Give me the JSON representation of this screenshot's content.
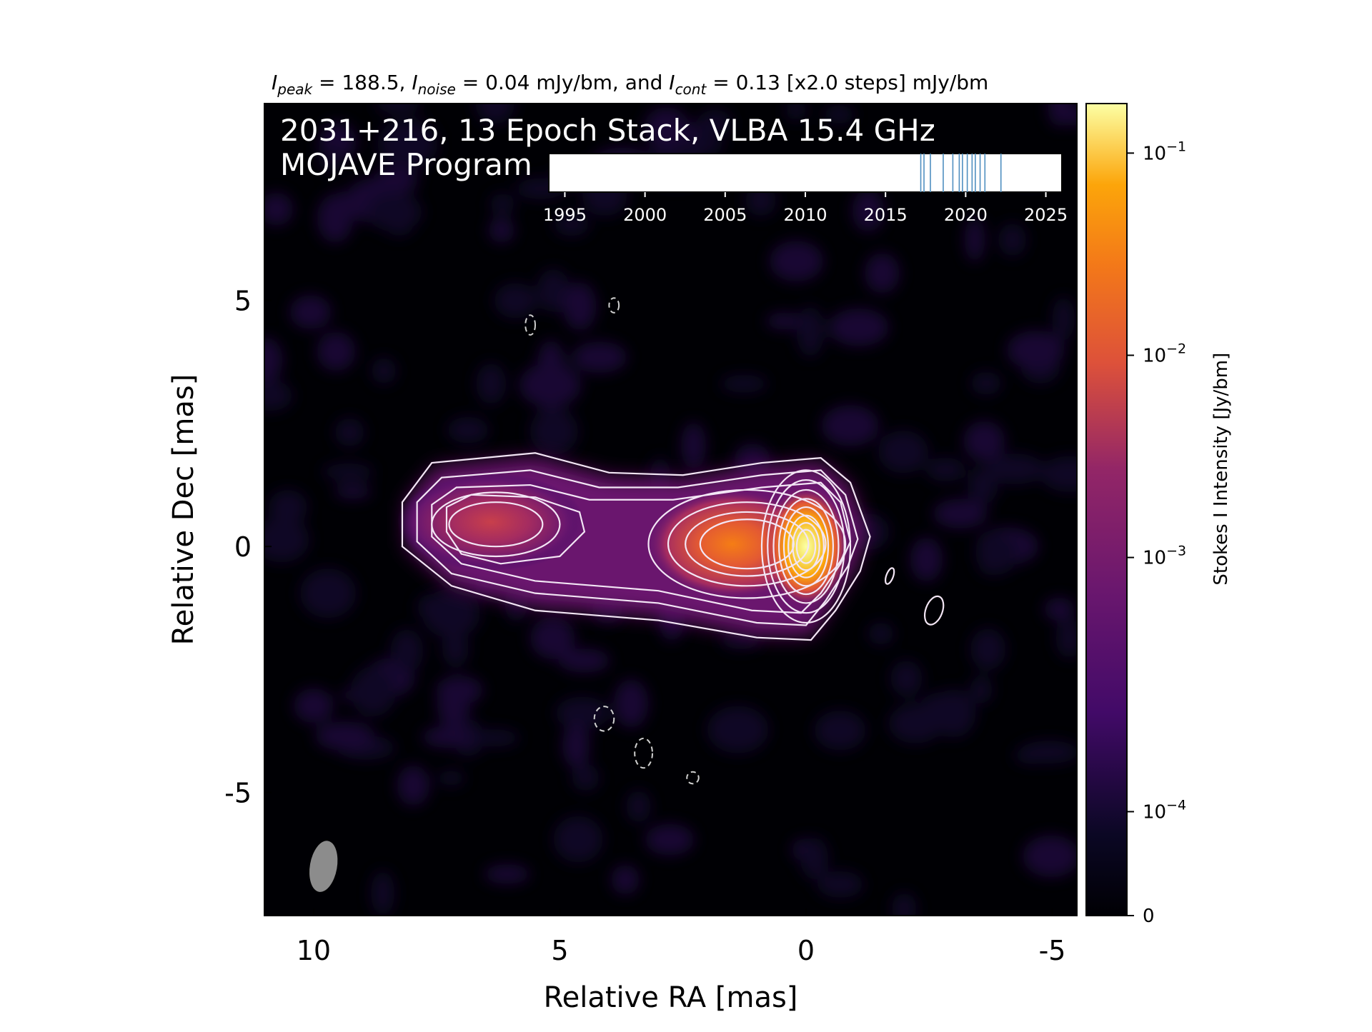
{
  "chart_data": {
    "type": "heatmap",
    "top_title": {
      "i_peak_label": "I",
      "i_peak_sub": "peak",
      "i_peak_val": " = 188.5, ",
      "i_noise_label": "I",
      "i_noise_sub": "noise",
      "i_noise_val": " = 0.04 mJy/bm, and ",
      "i_cont_label": "I",
      "i_cont_sub": "cont",
      "i_cont_val": " = 0.13 [x2.0 steps] mJy/bm"
    },
    "panel_title_line1": "2031+216, 13 Epoch Stack, VLBA 15.4 GHz",
    "panel_title_line2": "MOJAVE Program",
    "xlabel": "Relative RA [mas]",
    "ylabel": "Relative Dec [mas]",
    "xlim": [
      11,
      -5.5
    ],
    "ylim": [
      -7.5,
      9
    ],
    "xticks": [
      10,
      5,
      0,
      -5
    ],
    "xtick_labels": [
      "10",
      "5",
      "0",
      "-5"
    ],
    "yticks": [
      5,
      0,
      -5
    ],
    "ytick_labels": [
      "5",
      "0",
      "-5"
    ],
    "colorbar": {
      "label": "Stokes I Intensity [Jy/bm]",
      "scale": "log",
      "colormap": "inferno",
      "tick_values": [
        0,
        0.0001,
        0.001,
        0.01,
        0.1
      ],
      "tick_labels": [
        {
          "base": "0",
          "exp": ""
        },
        {
          "base": "10",
          "exp": "−4"
        },
        {
          "base": "10",
          "exp": "−3"
        },
        {
          "base": "10",
          "exp": "−2"
        },
        {
          "base": "10",
          "exp": "−1"
        }
      ]
    },
    "components": [
      {
        "ra": 0.0,
        "dec": 0.0,
        "flux_jy": 0.1885
      },
      {
        "ra": 1.5,
        "dec": 0.1,
        "flux_jy": 0.02
      },
      {
        "ra": 6.5,
        "dec": 0.5,
        "flux_jy": 0.004
      }
    ],
    "contour_levels_mjy": [
      0.13,
      0.26,
      0.52,
      1.04,
      2.08,
      4.16,
      8.32,
      16.64,
      33.28,
      66.56,
      133.12
    ],
    "negative_contours": [
      {
        "ra": 5.6,
        "dec": 4.5
      },
      {
        "ra": 3.9,
        "dec": 4.9
      },
      {
        "ra": 4.1,
        "dec": -3.5
      },
      {
        "ra": 3.3,
        "dec": -4.2
      },
      {
        "ra": 2.3,
        "dec": -4.7
      }
    ],
    "isolated_contours": [
      {
        "ra": -1.7,
        "dec": -0.6
      },
      {
        "ra": -2.6,
        "dec": -1.3
      }
    ],
    "beam": {
      "ra": 9.8,
      "dec": -6.5,
      "major_mas": 1.05,
      "minor_mas": 0.55
    },
    "epoch_timeline": {
      "ticks": [
        1995,
        2000,
        2005,
        2010,
        2015,
        2020,
        2025
      ],
      "tick_labels": [
        "1995",
        "2000",
        "2005",
        "2010",
        "2015",
        "2020",
        "2025"
      ],
      "range": [
        1994,
        2026
      ],
      "epochs": [
        2017.4,
        2017.8,
        2018.6,
        2019.2,
        2019.6,
        2019.8,
        2020.1,
        2020.4,
        2020.6,
        2020.9,
        2021.2,
        2022.2,
        2017.2
      ]
    }
  }
}
